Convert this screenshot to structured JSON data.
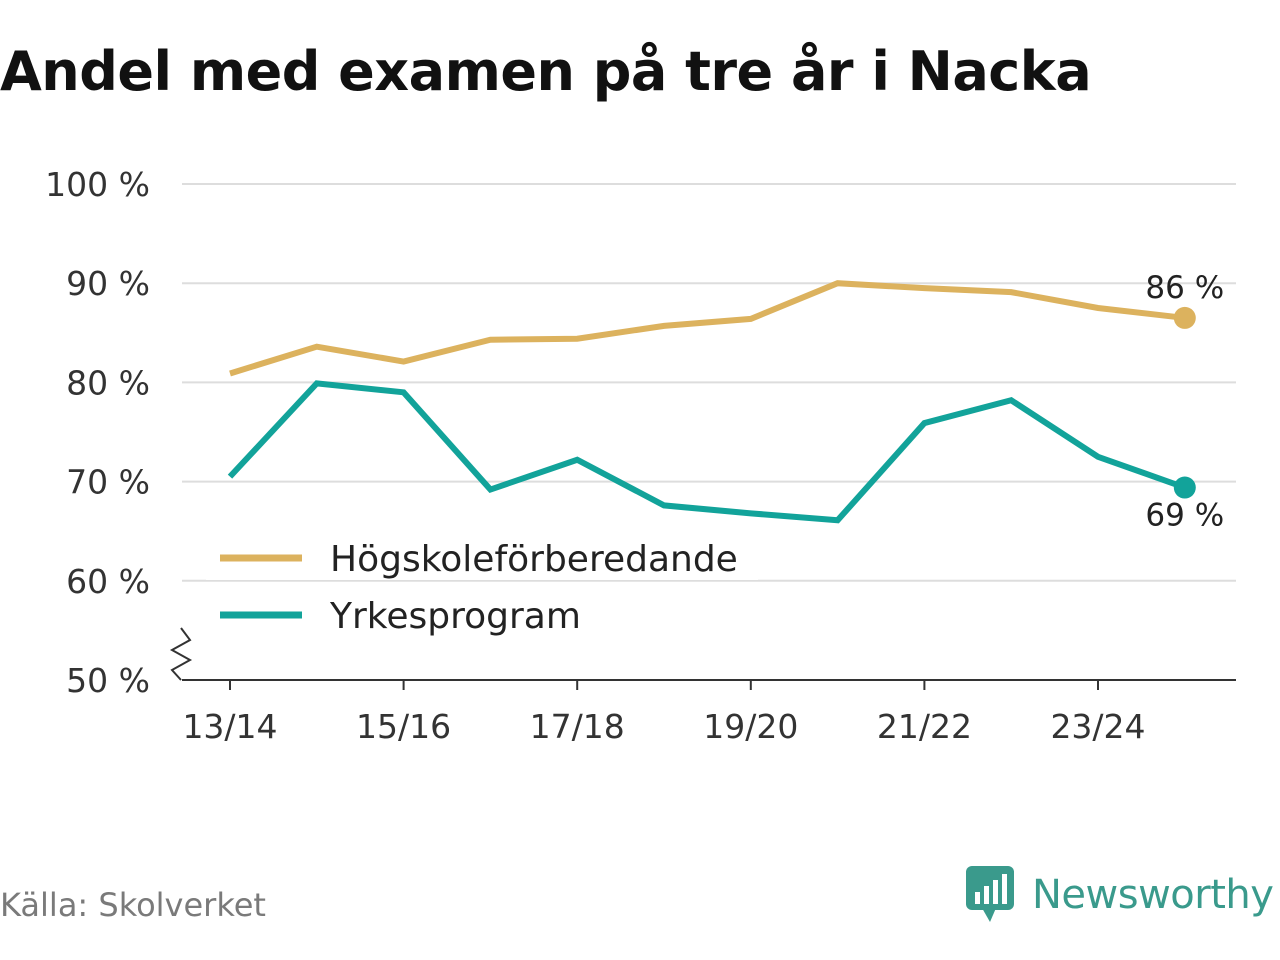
{
  "title": "Andel med examen på tre år i Nacka",
  "source": "Källa: Skolverket",
  "brand": {
    "name": "Newsworthy",
    "icon": "newsworthy-logo-icon"
  },
  "colors": {
    "hogskole": "#dcb25e",
    "yrke": "#12a39a",
    "grid": "#dddddd",
    "axis": "#333333",
    "brand": "#3a9a8c"
  },
  "chart_data": {
    "type": "line",
    "title": "Andel med examen på tre år i Nacka",
    "xlabel": "",
    "ylabel": "",
    "x": [
      "13/14",
      "14/15",
      "15/16",
      "16/17",
      "17/18",
      "18/19",
      "19/20",
      "20/21",
      "21/22",
      "22/23",
      "23/24",
      "24/25"
    ],
    "x_ticks": [
      "13/14",
      "15/16",
      "17/18",
      "19/20",
      "21/22",
      "23/24"
    ],
    "ylim": [
      50,
      100
    ],
    "y_ticks": [
      50,
      60,
      70,
      80,
      90,
      100
    ],
    "y_tick_labels": [
      "50 %",
      "60 %",
      "70 %",
      "80 %",
      "90 %",
      "100 %"
    ],
    "axis_break": true,
    "grid": true,
    "legend_position": "bottom-left",
    "series": [
      {
        "name": "Högskoleförberedande",
        "color": "#dcb25e",
        "values": [
          80.9,
          83.6,
          82.1,
          84.3,
          84.4,
          85.7,
          86.4,
          90.0,
          89.5,
          89.1,
          87.5,
          86.5
        ],
        "end_label": "86 %"
      },
      {
        "name": "Yrkesprogram",
        "color": "#12a39a",
        "values": [
          70.5,
          79.9,
          79.0,
          69.2,
          72.2,
          67.6,
          66.8,
          66.1,
          75.9,
          78.2,
          72.5,
          69.4
        ],
        "end_label": "69 %"
      }
    ]
  }
}
